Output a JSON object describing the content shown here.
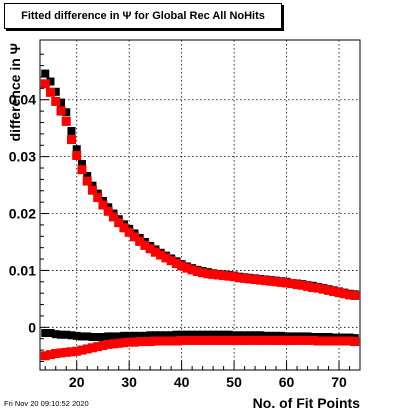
{
  "footer": {
    "timestamp": "Fri Nov 20 09:10:52 2020"
  },
  "colors": {
    "series_1": "#000000",
    "series_2": "#ff0000",
    "grid": "#000000"
  },
  "chart_data": {
    "type": "scatter",
    "title": "Fitted difference in  Ψ  for Global Rec All NoHits",
    "xlabel": "No. of Fit Points",
    "ylabel": "difference in  Ψ",
    "xlim": [
      13,
      74
    ],
    "ylim": [
      -0.0075,
      0.0505
    ],
    "grid": true,
    "x_ticks": [
      "20",
      "30",
      "40",
      "50",
      "60",
      "70"
    ],
    "y_ticks": [
      "0",
      "0.01",
      "0.02",
      "0.03",
      "0.04"
    ],
    "x": [
      14,
      15,
      16,
      17,
      18,
      19,
      20,
      21,
      22,
      23,
      24,
      25,
      26,
      27,
      28,
      29,
      30,
      31,
      32,
      33,
      34,
      35,
      36,
      37,
      38,
      39,
      40,
      41,
      42,
      43,
      44,
      45,
      46,
      47,
      48,
      49,
      50,
      51,
      52,
      53,
      54,
      55,
      56,
      57,
      58,
      59,
      60,
      61,
      62,
      63,
      64,
      65,
      66,
      67,
      68,
      69,
      70,
      71,
      72,
      73
    ],
    "series": [
      {
        "values": [
          0.0446,
          0.0432,
          0.0414,
          0.0395,
          0.0378,
          0.0345,
          0.0313,
          0.0287,
          0.0266,
          0.0249,
          0.0235,
          0.0222,
          0.0211,
          0.02,
          0.019,
          0.0181,
          0.0173,
          0.0165,
          0.0157,
          0.015,
          0.0143,
          0.0137,
          0.0131,
          0.0126,
          0.0121,
          0.0116,
          0.0111,
          0.0107,
          0.0104,
          0.0101,
          0.0099,
          0.0097,
          0.0095,
          0.0094,
          0.0093,
          0.0092,
          0.0091,
          0.0089,
          0.0088,
          0.0087,
          0.0086,
          0.0085,
          0.0084,
          0.0083,
          0.0082,
          0.0081,
          0.008,
          0.0078,
          0.0077,
          0.0076,
          0.0074,
          0.0073,
          0.0071,
          0.0069,
          0.0067,
          0.0065,
          0.0063,
          0.0061,
          0.0059,
          0.0058
        ],
        "values_lower": [
          -0.001,
          -0.001,
          -0.0012,
          -0.0013,
          -0.0013,
          -0.0014,
          -0.0015,
          -0.0016,
          -0.0016,
          -0.0017,
          -0.0017,
          -0.0017,
          -0.0016,
          -0.0016,
          -0.0016,
          -0.0015,
          -0.0015,
          -0.0015,
          -0.0015,
          -0.0015,
          -0.0014,
          -0.0014,
          -0.0014,
          -0.0014,
          -0.0014,
          -0.0013,
          -0.0013,
          -0.0013,
          -0.0013,
          -0.0013,
          -0.0013,
          -0.0013,
          -0.0013,
          -0.0013,
          -0.0013,
          -0.0013,
          -0.0014,
          -0.0014,
          -0.0014,
          -0.0014,
          -0.0014,
          -0.0014,
          -0.0015,
          -0.0015,
          -0.0015,
          -0.0015,
          -0.0016,
          -0.0016,
          -0.0016,
          -0.0016,
          -0.0016,
          -0.0017,
          -0.0017,
          -0.0017,
          -0.0017,
          -0.0018,
          -0.0018,
          -0.0018,
          -0.0018,
          -0.0019
        ]
      },
      {
        "values": [
          0.0428,
          0.0413,
          0.0397,
          0.038,
          0.0362,
          0.033,
          0.0302,
          0.0277,
          0.0257,
          0.0241,
          0.0228,
          0.0215,
          0.0204,
          0.0194,
          0.0184,
          0.0175,
          0.0167,
          0.0159,
          0.0151,
          0.0144,
          0.0138,
          0.0132,
          0.0127,
          0.0122,
          0.0117,
          0.0112,
          0.0108,
          0.0104,
          0.0101,
          0.0098,
          0.0096,
          0.0094,
          0.0093,
          0.0092,
          0.0091,
          0.009,
          0.0089,
          0.0087,
          0.0086,
          0.0085,
          0.0084,
          0.0083,
          0.0082,
          0.0081,
          0.008,
          0.0079,
          0.0078,
          0.0077,
          0.0075,
          0.0074,
          0.0072,
          0.007,
          0.0069,
          0.0067,
          0.0065,
          0.0063,
          0.0061,
          0.0059,
          0.0057,
          0.0056
        ],
        "values_lower": [
          -0.005,
          -0.0048,
          -0.0046,
          -0.0045,
          -0.0044,
          -0.0043,
          -0.0042,
          -0.004,
          -0.0038,
          -0.0036,
          -0.0034,
          -0.0032,
          -0.003,
          -0.0029,
          -0.0028,
          -0.0027,
          -0.0026,
          -0.0026,
          -0.0025,
          -0.0025,
          -0.0025,
          -0.0024,
          -0.0024,
          -0.0024,
          -0.0024,
          -0.0024,
          -0.0023,
          -0.0023,
          -0.0023,
          -0.0023,
          -0.0023,
          -0.0023,
          -0.0023,
          -0.0023,
          -0.0023,
          -0.0023,
          -0.0023,
          -0.0023,
          -0.0023,
          -0.0023,
          -0.0023,
          -0.0023,
          -0.0023,
          -0.0023,
          -0.0023,
          -0.0023,
          -0.0023,
          -0.0023,
          -0.0023,
          -0.0023,
          -0.0023,
          -0.0023,
          -0.0024,
          -0.0024,
          -0.0024,
          -0.0024,
          -0.0024,
          -0.0024,
          -0.0024,
          -0.0025
        ]
      }
    ]
  }
}
